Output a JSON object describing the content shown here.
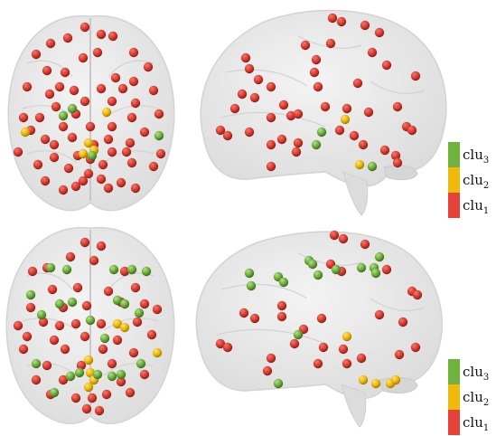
{
  "legend_top": {
    "items": [
      {
        "key": "clu3",
        "base": "clu",
        "sub": "3",
        "color": "#6fb23e"
      },
      {
        "key": "clu2",
        "base": "clu",
        "sub": "2",
        "color": "#f2b90c"
      },
      {
        "key": "clu1",
        "base": "clu",
        "sub": "1",
        "color": "#e8413a"
      }
    ]
  },
  "legend_bottom": {
    "items": [
      {
        "key": "clu3",
        "base": "clu",
        "sub": "3",
        "color": "#6fb23e"
      },
      {
        "key": "clu2",
        "base": "clu",
        "sub": "2",
        "color": "#f2b90c"
      },
      {
        "key": "clu1",
        "base": "clu",
        "sub": "1",
        "color": "#e8413a"
      }
    ]
  },
  "colors": {
    "clu1": "#d63a30",
    "clu2": "#e9b40b",
    "clu3": "#6aa83a",
    "brain_fill": "#e7e7e7",
    "brain_edge": "#c9c9c9"
  },
  "panels": [
    {
      "view": "axial",
      "row": "top",
      "nodes": {
        "clu1": 62,
        "clu2": 5,
        "clu3": 4
      }
    },
    {
      "view": "sagittal",
      "row": "top",
      "nodes": {
        "clu1": 44,
        "clu2": 2,
        "clu3": 3
      }
    },
    {
      "view": "axial",
      "row": "bottom",
      "nodes": {
        "clu1": 46,
        "clu2": 7,
        "clu3": 22
      }
    },
    {
      "view": "sagittal",
      "row": "bottom",
      "nodes": {
        "clu1": 28,
        "clu2": 5,
        "clu3": 14
      }
    }
  ]
}
